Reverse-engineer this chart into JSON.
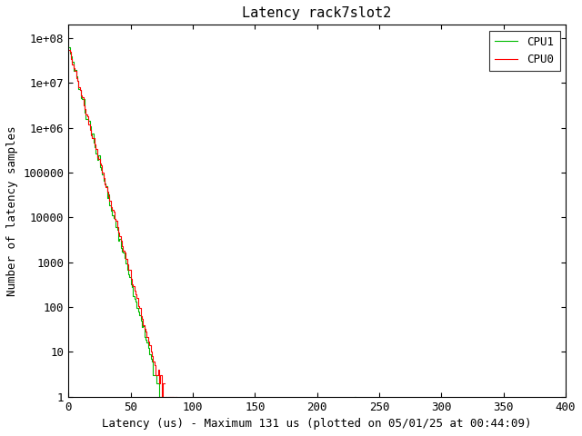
{
  "title": "Latency rack7slot2",
  "xlabel": "Latency (us) - Maximum 131 us (plotted on 05/01/25 at 00:44:09)",
  "ylabel": "Number of latency samples",
  "cpu0_color": "#ff0000",
  "cpu1_color": "#00bb00",
  "legend_labels": [
    "CPU0",
    "CPU1"
  ],
  "xlim": [
    0,
    400
  ],
  "ylim": [
    1,
    200000000.0
  ],
  "background_color": "#ffffff",
  "title_fontsize": 11,
  "label_fontsize": 9,
  "tick_fontsize": 9,
  "legend_fontsize": 9,
  "yticks": [
    1,
    10,
    100,
    1000,
    10000,
    100000,
    1000000,
    10000000,
    100000000
  ],
  "ytick_labels": [
    "1",
    "10",
    "100",
    "1000",
    "10000",
    "100000",
    "1e+06",
    "1e+07",
    "1e+08"
  ]
}
